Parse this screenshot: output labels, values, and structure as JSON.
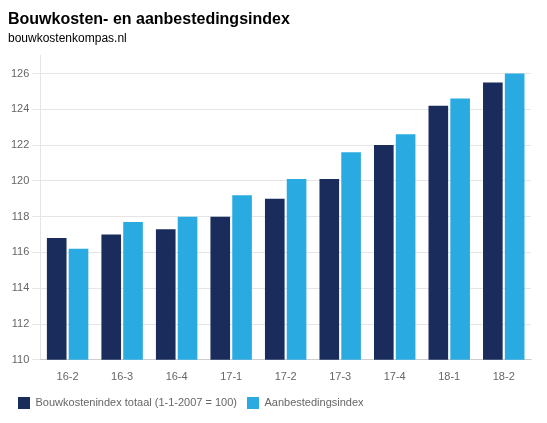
{
  "chart_data": {
    "type": "bar",
    "title": "Bouwkosten- en aanbestedingsindex",
    "subtitle": "bouwkostenkompas.nl",
    "categories": [
      "16-2",
      "16-3",
      "16-4",
      "17-1",
      "17-2",
      "17-3",
      "17-4",
      "18-1",
      "18-2"
    ],
    "series": [
      {
        "name": "Bouwkostenindex totaal (1-1-2007 = 100)",
        "color": "#1a2c5b",
        "values": [
          116.8,
          117.0,
          117.3,
          118.0,
          119.0,
          120.1,
          122.0,
          124.2,
          125.5
        ]
      },
      {
        "name": "Aanbestedingsindex",
        "color": "#29aae1",
        "values": [
          116.2,
          117.7,
          118.0,
          119.2,
          120.1,
          121.6,
          122.6,
          124.6,
          126.0
        ]
      }
    ],
    "ylim": [
      110,
      127
    ],
    "yticks": [
      110,
      112,
      114,
      116,
      118,
      120,
      122,
      124,
      126
    ],
    "grid": true,
    "legend": "bottom left"
  }
}
